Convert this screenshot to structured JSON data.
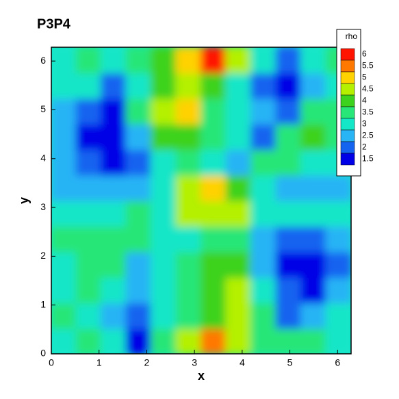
{
  "chart_data": {
    "type": "contour",
    "title": "P3P4",
    "x_label": "x",
    "y_label": "y",
    "legend_title": "rho",
    "xlim": [
      0,
      6.283
    ],
    "ylim": [
      0,
      6.283
    ],
    "xticks": [
      0,
      1,
      2,
      3,
      4,
      5,
      6
    ],
    "yticks": [
      0,
      1,
      2,
      3,
      4,
      5,
      6
    ],
    "levels": [
      1.5,
      2,
      2.5,
      3,
      3.5,
      4,
      4.5,
      5,
      5.5,
      6
    ],
    "colors": [
      "#0000e6",
      "#1464f0",
      "#28b4f5",
      "#14e6c8",
      "#28e678",
      "#3cd21e",
      "#b4f000",
      "#ffd200",
      "#ff7800",
      "#ff1400"
    ],
    "z": [
      [
        3,
        3.5,
        3,
        1.5,
        3.5,
        4.5,
        5.5,
        4.5,
        3.5,
        3.5,
        3.5,
        3
      ],
      [
        3.5,
        3,
        2.5,
        2,
        3,
        3.5,
        4,
        4.5,
        3.5,
        2,
        2.5,
        3
      ],
      [
        3,
        3.5,
        3,
        2.5,
        3,
        3.5,
        4,
        4.5,
        3,
        2,
        1.5,
        2.5
      ],
      [
        3,
        3.5,
        3.5,
        2.5,
        3,
        3.5,
        4,
        4,
        2.5,
        1.5,
        1.5,
        2
      ],
      [
        3.5,
        3.5,
        3.5,
        3.5,
        3,
        3,
        3.5,
        3.5,
        2.5,
        2,
        2,
        2.5
      ],
      [
        3,
        3,
        3,
        3.5,
        3,
        4.5,
        4.5,
        4.5,
        3,
        3,
        3,
        3
      ],
      [
        2.5,
        2.5,
        2.5,
        2.5,
        3,
        4.5,
        5,
        4,
        3,
        2.5,
        2.5,
        2.5
      ],
      [
        2.5,
        2,
        1.5,
        2,
        3,
        3.5,
        3,
        2.5,
        3.5,
        3.5,
        3,
        3
      ],
      [
        2.5,
        1.5,
        1.5,
        2.5,
        4,
        4,
        3.5,
        3,
        2,
        3.5,
        4,
        3.5
      ],
      [
        2.5,
        2,
        1.5,
        3.5,
        4.5,
        5,
        3.5,
        3,
        2.5,
        2,
        3.5,
        3.5
      ],
      [
        3,
        3,
        2,
        3,
        4,
        4.5,
        4,
        3,
        2,
        1.5,
        2.5,
        3
      ],
      [
        3,
        3.5,
        3,
        3.5,
        4,
        5,
        6,
        4.5,
        3,
        2,
        3,
        3.5
      ]
    ]
  }
}
